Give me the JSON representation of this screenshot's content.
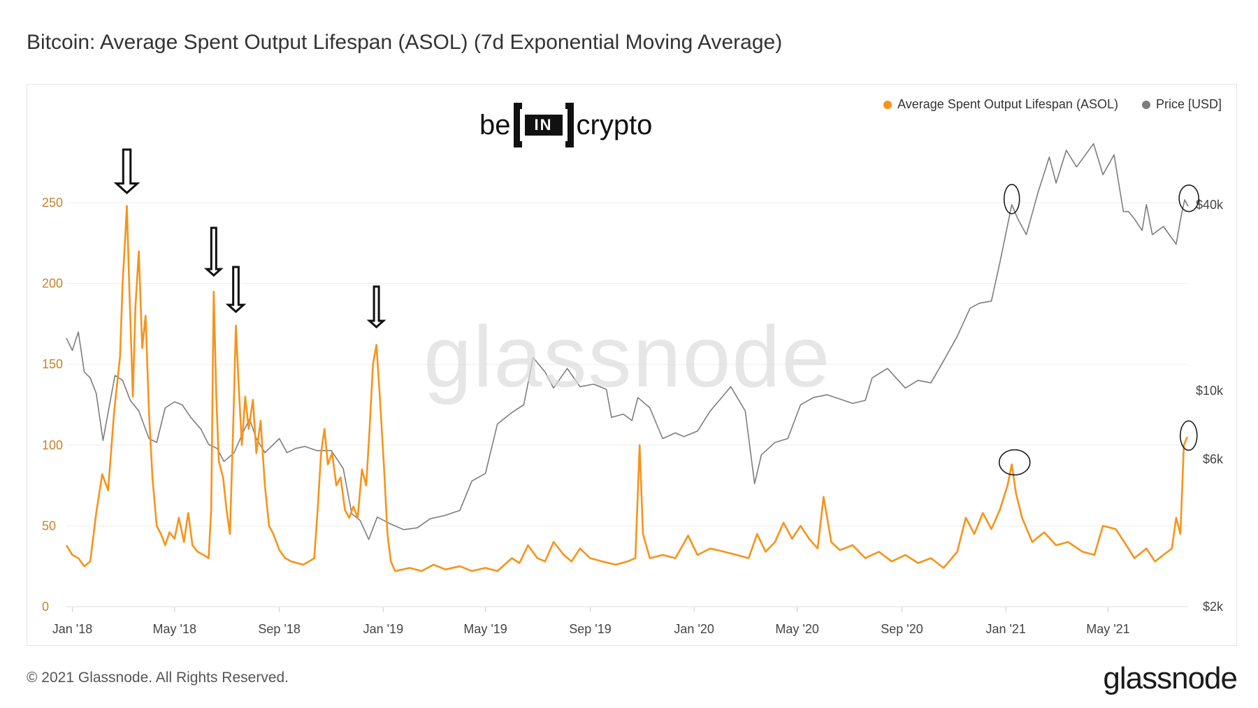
{
  "title": "Bitcoin: Average Spent Output Lifespan (ASOL) (7d Exponential Moving Average)",
  "brand": {
    "left": "be",
    "box": "IN",
    "right": "crypto"
  },
  "watermark": "glassnode",
  "footer": {
    "copyright": "© 2021 Glassnode. All Rights Reserved.",
    "logo": "glassnode"
  },
  "colors": {
    "asol": "#f7931a",
    "price": "#7d7d7d",
    "grid": "#eeeeee",
    "axis_left": "#c8832a"
  },
  "chart_data": {
    "type": "line",
    "legend_position": "top-right",
    "grid": true,
    "x_ticks": [
      "Jan '18",
      "May '18",
      "Sep '18",
      "Jan '19",
      "May '19",
      "Sep '19",
      "Jan '20",
      "May '20",
      "Sep '20",
      "Jan '21",
      "May '21"
    ],
    "x_range": [
      "2017-12-25",
      "2021-08-03"
    ],
    "y_left": {
      "ticks": [
        "0",
        "50",
        "100",
        "150",
        "200",
        "250"
      ],
      "range": [
        0,
        250
      ]
    },
    "y_right": {
      "ticks": [
        "$2k",
        "$6k",
        "$10k",
        "$40k"
      ],
      "scale": "log",
      "range": [
        2000,
        60000
      ]
    },
    "series": [
      {
        "name": "Average Spent Output Lifespan (ASOL)",
        "axis": "left",
        "points": [
          [
            "2017-12-25",
            38
          ],
          [
            "2018-01-01",
            32
          ],
          [
            "2018-01-08",
            30
          ],
          [
            "2018-01-15",
            25
          ],
          [
            "2018-01-22",
            28
          ],
          [
            "2018-01-29",
            58
          ],
          [
            "2018-02-05",
            82
          ],
          [
            "2018-02-12",
            72
          ],
          [
            "2018-02-19",
            120
          ],
          [
            "2018-02-26",
            155
          ],
          [
            "2018-03-01",
            200
          ],
          [
            "2018-03-04",
            228
          ],
          [
            "2018-03-06",
            248
          ],
          [
            "2018-03-09",
            195
          ],
          [
            "2018-03-13",
            130
          ],
          [
            "2018-03-16",
            185
          ],
          [
            "2018-03-20",
            220
          ],
          [
            "2018-03-24",
            160
          ],
          [
            "2018-03-28",
            180
          ],
          [
            "2018-04-01",
            120
          ],
          [
            "2018-04-05",
            80
          ],
          [
            "2018-04-10",
            50
          ],
          [
            "2018-04-15",
            45
          ],
          [
            "2018-04-20",
            38
          ],
          [
            "2018-04-25",
            46
          ],
          [
            "2018-05-01",
            42
          ],
          [
            "2018-05-06",
            55
          ],
          [
            "2018-05-12",
            40
          ],
          [
            "2018-05-17",
            58
          ],
          [
            "2018-05-22",
            38
          ],
          [
            "2018-05-28",
            34
          ],
          [
            "2018-06-04",
            32
          ],
          [
            "2018-06-10",
            30
          ],
          [
            "2018-06-13",
            60
          ],
          [
            "2018-06-16",
            195
          ],
          [
            "2018-06-19",
            130
          ],
          [
            "2018-06-22",
            90
          ],
          [
            "2018-06-27",
            80
          ],
          [
            "2018-07-01",
            60
          ],
          [
            "2018-07-05",
            45
          ],
          [
            "2018-07-09",
            115
          ],
          [
            "2018-07-12",
            174
          ],
          [
            "2018-07-15",
            140
          ],
          [
            "2018-07-19",
            100
          ],
          [
            "2018-07-23",
            130
          ],
          [
            "2018-07-27",
            110
          ],
          [
            "2018-08-01",
            128
          ],
          [
            "2018-08-05",
            95
          ],
          [
            "2018-08-10",
            115
          ],
          [
            "2018-08-15",
            75
          ],
          [
            "2018-08-20",
            50
          ],
          [
            "2018-08-25",
            45
          ],
          [
            "2018-09-01",
            35
          ],
          [
            "2018-09-08",
            30
          ],
          [
            "2018-09-15",
            28
          ],
          [
            "2018-09-22",
            27
          ],
          [
            "2018-09-29",
            26
          ],
          [
            "2018-10-06",
            28
          ],
          [
            "2018-10-12",
            30
          ],
          [
            "2018-10-16",
            60
          ],
          [
            "2018-10-20",
            95
          ],
          [
            "2018-10-24",
            110
          ],
          [
            "2018-10-28",
            88
          ],
          [
            "2018-11-02",
            95
          ],
          [
            "2018-11-07",
            75
          ],
          [
            "2018-11-12",
            80
          ],
          [
            "2018-11-17",
            60
          ],
          [
            "2018-11-22",
            55
          ],
          [
            "2018-11-27",
            62
          ],
          [
            "2018-12-02",
            55
          ],
          [
            "2018-12-07",
            85
          ],
          [
            "2018-12-12",
            75
          ],
          [
            "2018-12-16",
            110
          ],
          [
            "2018-12-20",
            150
          ],
          [
            "2018-12-24",
            162
          ],
          [
            "2018-12-28",
            130
          ],
          [
            "2019-01-02",
            85
          ],
          [
            "2019-01-06",
            45
          ],
          [
            "2019-01-10",
            28
          ],
          [
            "2019-01-15",
            22
          ],
          [
            "2019-02-01",
            24
          ],
          [
            "2019-02-15",
            22
          ],
          [
            "2019-03-01",
            26
          ],
          [
            "2019-03-15",
            23
          ],
          [
            "2019-04-01",
            25
          ],
          [
            "2019-04-15",
            22
          ],
          [
            "2019-05-01",
            24
          ],
          [
            "2019-05-15",
            22
          ],
          [
            "2019-06-01",
            30
          ],
          [
            "2019-06-10",
            27
          ],
          [
            "2019-06-20",
            38
          ],
          [
            "2019-07-01",
            30
          ],
          [
            "2019-07-10",
            28
          ],
          [
            "2019-07-20",
            40
          ],
          [
            "2019-08-01",
            32
          ],
          [
            "2019-08-10",
            28
          ],
          [
            "2019-08-20",
            36
          ],
          [
            "2019-09-01",
            30
          ],
          [
            "2019-09-15",
            28
          ],
          [
            "2019-10-01",
            26
          ],
          [
            "2019-10-15",
            28
          ],
          [
            "2019-10-24",
            30
          ],
          [
            "2019-10-29",
            100
          ],
          [
            "2019-11-02",
            45
          ],
          [
            "2019-11-10",
            30
          ],
          [
            "2019-11-25",
            32
          ],
          [
            "2019-12-10",
            30
          ],
          [
            "2019-12-25",
            44
          ],
          [
            "2020-01-05",
            32
          ],
          [
            "2020-01-20",
            36
          ],
          [
            "2020-02-05",
            34
          ],
          [
            "2020-02-20",
            32
          ],
          [
            "2020-03-05",
            30
          ],
          [
            "2020-03-15",
            45
          ],
          [
            "2020-03-25",
            34
          ],
          [
            "2020-04-05",
            40
          ],
          [
            "2020-04-15",
            52
          ],
          [
            "2020-04-25",
            42
          ],
          [
            "2020-05-05",
            50
          ],
          [
            "2020-05-15",
            42
          ],
          [
            "2020-05-25",
            36
          ],
          [
            "2020-06-01",
            68
          ],
          [
            "2020-06-10",
            40
          ],
          [
            "2020-06-20",
            35
          ],
          [
            "2020-07-05",
            38
          ],
          [
            "2020-07-20",
            30
          ],
          [
            "2020-08-05",
            34
          ],
          [
            "2020-08-20",
            28
          ],
          [
            "2020-09-05",
            32
          ],
          [
            "2020-09-20",
            27
          ],
          [
            "2020-10-05",
            30
          ],
          [
            "2020-10-20",
            24
          ],
          [
            "2020-11-05",
            34
          ],
          [
            "2020-11-15",
            55
          ],
          [
            "2020-11-25",
            45
          ],
          [
            "2020-12-05",
            58
          ],
          [
            "2020-12-15",
            48
          ],
          [
            "2020-12-25",
            60
          ],
          [
            "2021-01-03",
            75
          ],
          [
            "2021-01-08",
            88
          ],
          [
            "2021-01-13",
            70
          ],
          [
            "2021-01-20",
            55
          ],
          [
            "2021-02-01",
            40
          ],
          [
            "2021-02-15",
            46
          ],
          [
            "2021-03-01",
            38
          ],
          [
            "2021-03-15",
            40
          ],
          [
            "2021-04-01",
            34
          ],
          [
            "2021-04-15",
            32
          ],
          [
            "2021-04-25",
            50
          ],
          [
            "2021-05-10",
            48
          ],
          [
            "2021-05-20",
            40
          ],
          [
            "2021-06-01",
            30
          ],
          [
            "2021-06-15",
            36
          ],
          [
            "2021-06-25",
            28
          ],
          [
            "2021-07-05",
            32
          ],
          [
            "2021-07-15",
            36
          ],
          [
            "2021-07-20",
            55
          ],
          [
            "2021-07-25",
            45
          ],
          [
            "2021-07-29",
            100
          ],
          [
            "2021-08-02",
            105
          ]
        ]
      },
      {
        "name": "Price [USD]",
        "axis": "right",
        "points": [
          [
            "2017-12-25",
            14800
          ],
          [
            "2018-01-01",
            13500
          ],
          [
            "2018-01-08",
            15500
          ],
          [
            "2018-01-15",
            11500
          ],
          [
            "2018-01-22",
            11000
          ],
          [
            "2018-01-29",
            9800
          ],
          [
            "2018-02-06",
            6900
          ],
          [
            "2018-02-12",
            8500
          ],
          [
            "2018-02-20",
            11200
          ],
          [
            "2018-03-01",
            10800
          ],
          [
            "2018-03-10",
            9300
          ],
          [
            "2018-03-20",
            8600
          ],
          [
            "2018-04-01",
            7000
          ],
          [
            "2018-04-10",
            6800
          ],
          [
            "2018-04-20",
            8800
          ],
          [
            "2018-05-01",
            9200
          ],
          [
            "2018-05-10",
            9000
          ],
          [
            "2018-05-20",
            8200
          ],
          [
            "2018-06-01",
            7500
          ],
          [
            "2018-06-10",
            6700
          ],
          [
            "2018-06-20",
            6500
          ],
          [
            "2018-06-28",
            5900
          ],
          [
            "2018-07-10",
            6300
          ],
          [
            "2018-07-20",
            7300
          ],
          [
            "2018-07-28",
            8100
          ],
          [
            "2018-08-05",
            7000
          ],
          [
            "2018-08-15",
            6300
          ],
          [
            "2018-09-01",
            7000
          ],
          [
            "2018-09-10",
            6300
          ],
          [
            "2018-09-20",
            6500
          ],
          [
            "2018-10-01",
            6600
          ],
          [
            "2018-10-15",
            6400
          ],
          [
            "2018-11-01",
            6400
          ],
          [
            "2018-11-15",
            5600
          ],
          [
            "2018-11-25",
            4000
          ],
          [
            "2018-12-05",
            3800
          ],
          [
            "2018-12-15",
            3300
          ],
          [
            "2018-12-25",
            3900
          ],
          [
            "2019-01-10",
            3700
          ],
          [
            "2019-01-25",
            3550
          ],
          [
            "2019-02-10",
            3600
          ],
          [
            "2019-02-25",
            3850
          ],
          [
            "2019-03-15",
            3950
          ],
          [
            "2019-04-01",
            4100
          ],
          [
            "2019-04-15",
            5100
          ],
          [
            "2019-05-01",
            5400
          ],
          [
            "2019-05-15",
            7800
          ],
          [
            "2019-06-01",
            8500
          ],
          [
            "2019-06-15",
            9000
          ],
          [
            "2019-06-26",
            12800
          ],
          [
            "2019-07-10",
            11500
          ],
          [
            "2019-07-20",
            10200
          ],
          [
            "2019-08-05",
            11800
          ],
          [
            "2019-08-20",
            10300
          ],
          [
            "2019-09-05",
            10500
          ],
          [
            "2019-09-20",
            10100
          ],
          [
            "2019-09-26",
            8200
          ],
          [
            "2019-10-10",
            8400
          ],
          [
            "2019-10-20",
            8000
          ],
          [
            "2019-10-27",
            9500
          ],
          [
            "2019-11-10",
            8800
          ],
          [
            "2019-11-25",
            7000
          ],
          [
            "2019-12-10",
            7300
          ],
          [
            "2019-12-20",
            7100
          ],
          [
            "2020-01-05",
            7400
          ],
          [
            "2020-01-20",
            8600
          ],
          [
            "2020-02-01",
            9400
          ],
          [
            "2020-02-13",
            10300
          ],
          [
            "2020-03-01",
            8600
          ],
          [
            "2020-03-12",
            5000
          ],
          [
            "2020-03-20",
            6200
          ],
          [
            "2020-04-05",
            6800
          ],
          [
            "2020-04-20",
            7000
          ],
          [
            "2020-05-05",
            9000
          ],
          [
            "2020-05-20",
            9500
          ],
          [
            "2020-06-05",
            9700
          ],
          [
            "2020-06-20",
            9400
          ],
          [
            "2020-07-05",
            9100
          ],
          [
            "2020-07-20",
            9300
          ],
          [
            "2020-07-28",
            11000
          ],
          [
            "2020-08-15",
            11800
          ],
          [
            "2020-09-05",
            10200
          ],
          [
            "2020-09-20",
            10800
          ],
          [
            "2020-10-05",
            10600
          ],
          [
            "2020-10-20",
            12500
          ],
          [
            "2020-11-05",
            15000
          ],
          [
            "2020-11-20",
            18500
          ],
          [
            "2020-12-01",
            19200
          ],
          [
            "2020-12-15",
            19500
          ],
          [
            "2020-12-25",
            26000
          ],
          [
            "2021-01-08",
            40000
          ],
          [
            "2021-01-15",
            36000
          ],
          [
            "2021-01-25",
            32000
          ],
          [
            "2021-02-08",
            44000
          ],
          [
            "2021-02-21",
            57000
          ],
          [
            "2021-03-01",
            47000
          ],
          [
            "2021-03-13",
            60000
          ],
          [
            "2021-03-25",
            53000
          ],
          [
            "2021-04-14",
            63000
          ],
          [
            "2021-04-25",
            50000
          ],
          [
            "2021-05-08",
            58000
          ],
          [
            "2021-05-19",
            38000
          ],
          [
            "2021-05-25",
            38000
          ],
          [
            "2021-06-01",
            36000
          ],
          [
            "2021-06-10",
            33000
          ],
          [
            "2021-06-15",
            40000
          ],
          [
            "2021-06-22",
            32000
          ],
          [
            "2021-07-05",
            34000
          ],
          [
            "2021-07-20",
            29800
          ],
          [
            "2021-07-26",
            37000
          ],
          [
            "2021-07-30",
            41500
          ],
          [
            "2021-08-03",
            39500
          ]
        ]
      }
    ]
  }
}
